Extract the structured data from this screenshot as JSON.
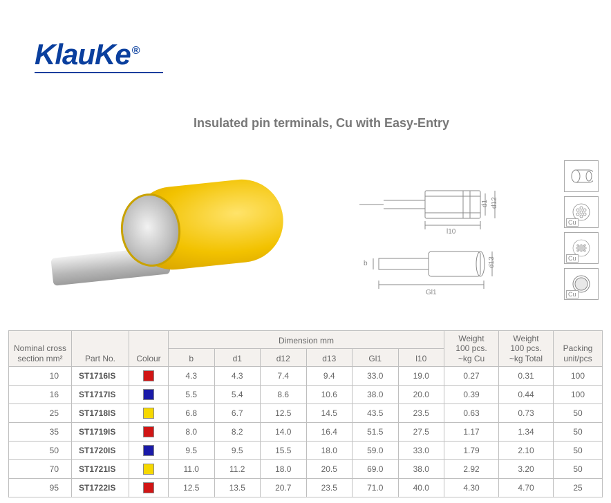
{
  "brand": "KlauKe",
  "title": "Insulated pin terminals, Cu with Easy-Entry",
  "drawing_labels": {
    "d1": "d1",
    "d12": "d12",
    "d13": "d13",
    "b": "b",
    "l10": "l10",
    "Gl1": "Gl1"
  },
  "icons": [
    {
      "name": "crimp-profile-icon",
      "cu": false
    },
    {
      "name": "cu-strand-fine-icon",
      "cu": true
    },
    {
      "name": "cu-strand-coarse-icon",
      "cu": true
    },
    {
      "name": "cu-solid-icon",
      "cu": true
    }
  ],
  "table": {
    "headers": {
      "nominal": "Nominal cross\nsection mm²",
      "part": "Part No.",
      "colour": "Colour",
      "dim_group": "Dimension mm",
      "b": "b",
      "d1": "d1",
      "d12": "d12",
      "d13": "d13",
      "Gl1": "Gl1",
      "l10": "l10",
      "w_cu": "Weight\n100 pcs.\n~kg Cu",
      "w_total": "Weight\n100 pcs.\n~kg Total",
      "pack": "Packing\nunit/pcs"
    },
    "colors": {
      "red": "#d11515",
      "blue": "#1a1aa8",
      "yellow": "#f6d800"
    },
    "rows": [
      {
        "nom": "10",
        "part": "ST1716IS",
        "colour": "red",
        "b": "4.3",
        "d1": "4.3",
        "d12": "7.4",
        "d13": "9.4",
        "Gl1": "33.0",
        "l10": "19.0",
        "wcu": "0.27",
        "wtot": "0.31",
        "pack": "100"
      },
      {
        "nom": "16",
        "part": "ST1717IS",
        "colour": "blue",
        "b": "5.5",
        "d1": "5.4",
        "d12": "8.6",
        "d13": "10.6",
        "Gl1": "38.0",
        "l10": "20.0",
        "wcu": "0.39",
        "wtot": "0.44",
        "pack": "100"
      },
      {
        "nom": "25",
        "part": "ST1718IS",
        "colour": "yellow",
        "b": "6.8",
        "d1": "6.7",
        "d12": "12.5",
        "d13": "14.5",
        "Gl1": "43.5",
        "l10": "23.5",
        "wcu": "0.63",
        "wtot": "0.73",
        "pack": "50"
      },
      {
        "nom": "35",
        "part": "ST1719IS",
        "colour": "red",
        "b": "8.0",
        "d1": "8.2",
        "d12": "14.0",
        "d13": "16.4",
        "Gl1": "51.5",
        "l10": "27.5",
        "wcu": "1.17",
        "wtot": "1.34",
        "pack": "50"
      },
      {
        "nom": "50",
        "part": "ST1720IS",
        "colour": "blue",
        "b": "9.5",
        "d1": "9.5",
        "d12": "15.5",
        "d13": "18.0",
        "Gl1": "59.0",
        "l10": "33.0",
        "wcu": "1.79",
        "wtot": "2.10",
        "pack": "50"
      },
      {
        "nom": "70",
        "part": "ST1721IS",
        "colour": "yellow",
        "b": "11.0",
        "d1": "11.2",
        "d12": "18.0",
        "d13": "20.5",
        "Gl1": "69.0",
        "l10": "38.0",
        "wcu": "2.92",
        "wtot": "3.20",
        "pack": "50"
      },
      {
        "nom": "95",
        "part": "ST1722IS",
        "colour": "red",
        "b": "12.5",
        "d1": "13.5",
        "d12": "20.7",
        "d13": "23.5",
        "Gl1": "71.0",
        "l10": "40.0",
        "wcu": "4.30",
        "wtot": "4.70",
        "pack": "25"
      }
    ]
  }
}
